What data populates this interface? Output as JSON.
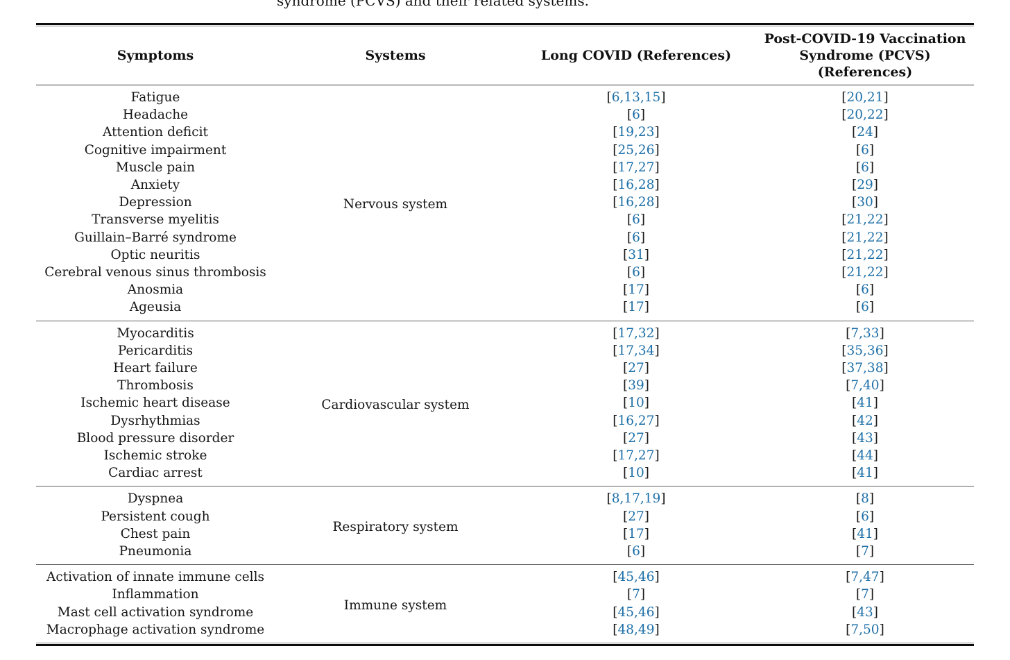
{
  "caption_fragment": "syndrome (PCVS) and their related systems.",
  "accent_link_color": "#1d6fa8",
  "header": {
    "symptoms": "Symptoms",
    "systems": "Systems",
    "long_covid": "Long COVID (References)",
    "pcvs_lines": [
      "Post-COVID-19 Vaccination",
      "Syndrome (PCVS)",
      "(References)"
    ]
  },
  "sections": [
    {
      "system": "Nervous system",
      "rows": [
        {
          "symptom": "Fatigue",
          "long_covid": "6,13,15",
          "pcvs": "20,21"
        },
        {
          "symptom": "Headache",
          "long_covid": "6",
          "pcvs": "20,22"
        },
        {
          "symptom": "Attention deficit",
          "long_covid": "19,23",
          "pcvs": "24"
        },
        {
          "symptom": "Cognitive impairment",
          "long_covid": "25,26",
          "pcvs": "6"
        },
        {
          "symptom": "Muscle pain",
          "long_covid": "17,27",
          "pcvs": "6"
        },
        {
          "symptom": "Anxiety",
          "long_covid": "16,28",
          "pcvs": "29"
        },
        {
          "symptom": "Depression",
          "long_covid": "16,28",
          "pcvs": "30"
        },
        {
          "symptom": "Transverse myelitis",
          "long_covid": "6",
          "pcvs": "21,22"
        },
        {
          "symptom": "Guillain–Barré syndrome",
          "long_covid": "6",
          "pcvs": "21,22"
        },
        {
          "symptom": "Optic neuritis",
          "long_covid": "31",
          "pcvs": "21,22"
        },
        {
          "symptom": "Cerebral venous sinus thrombosis",
          "long_covid": "6",
          "pcvs": "21,22"
        },
        {
          "symptom": "Anosmia",
          "long_covid": "17",
          "pcvs": "6"
        },
        {
          "symptom": "Ageusia",
          "long_covid": "17",
          "pcvs": "6"
        }
      ]
    },
    {
      "system": "Cardiovascular system",
      "rows": [
        {
          "symptom": "Myocarditis",
          "long_covid": "17,32",
          "pcvs": "7,33"
        },
        {
          "symptom": "Pericarditis",
          "long_covid": "17,34",
          "pcvs": "35,36"
        },
        {
          "symptom": "Heart failure",
          "long_covid": "27",
          "pcvs": "37,38"
        },
        {
          "symptom": "Thrombosis",
          "long_covid": "39",
          "pcvs": "7,40"
        },
        {
          "symptom": "Ischemic heart disease",
          "long_covid": "10",
          "pcvs": "41"
        },
        {
          "symptom": "Dysrhythmias",
          "long_covid": "16,27",
          "pcvs": "42"
        },
        {
          "symptom": "Blood pressure disorder",
          "long_covid": "27",
          "pcvs": "43"
        },
        {
          "symptom": "Ischemic stroke",
          "long_covid": "17,27",
          "pcvs": "44"
        },
        {
          "symptom": "Cardiac arrest",
          "long_covid": "10",
          "pcvs": "41"
        }
      ]
    },
    {
      "system": "Respiratory system",
      "rows": [
        {
          "symptom": "Dyspnea",
          "long_covid": "8,17,19",
          "pcvs": "8"
        },
        {
          "symptom": "Persistent cough",
          "long_covid": "27",
          "pcvs": "6"
        },
        {
          "symptom": "Chest pain",
          "long_covid": "17",
          "pcvs": "41"
        },
        {
          "symptom": "Pneumonia",
          "long_covid": "6",
          "pcvs": "7"
        }
      ]
    },
    {
      "system": "Immune system",
      "rows": [
        {
          "symptom": "Activation of innate immune cells",
          "long_covid": "45,46",
          "pcvs": "7,47"
        },
        {
          "symptom": "Inflammation",
          "long_covid": "7",
          "pcvs": "7"
        },
        {
          "symptom": "Mast cell activation syndrome",
          "long_covid": "45,46",
          "pcvs": "43"
        },
        {
          "symptom": "Macrophage activation syndrome",
          "long_covid": "48,49",
          "pcvs": "7,50"
        }
      ]
    }
  ]
}
